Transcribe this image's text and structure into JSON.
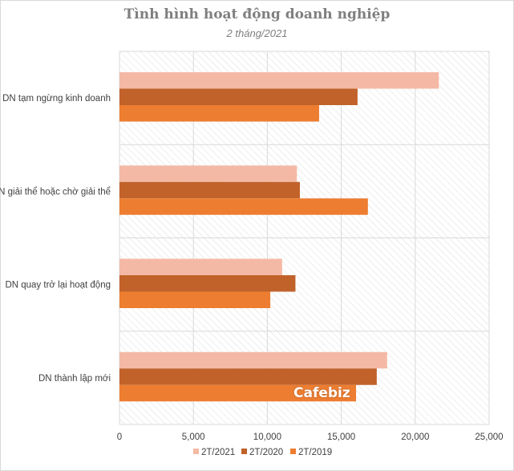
{
  "chart_data": {
    "type": "bar",
    "orientation": "horizontal",
    "title": "Tình hình hoạt động doanh nghiệp",
    "subtitle": "2 tháng/2021",
    "categories": [
      "DN tạm ngừng kinh doanh",
      "DN giải thể hoặc chờ giải thể",
      "DN quay trở lại hoạt động",
      "DN thành lập mới"
    ],
    "series": [
      {
        "name": "2T/2021",
        "color": "#f4b9a5",
        "values": [
          21600,
          12000,
          11000,
          18100
        ]
      },
      {
        "name": "2T/2020",
        "color": "#c0622a",
        "values": [
          16100,
          12200,
          11900,
          17400
        ]
      },
      {
        "name": "2T/2019",
        "color": "#ed7d31",
        "values": [
          13500,
          16800,
          10200,
          16000
        ]
      }
    ],
    "xlim": [
      0,
      25000
    ],
    "xticks": [
      0,
      5000,
      10000,
      15000,
      20000,
      25000
    ],
    "xtick_labels": [
      "0",
      "5,000",
      "10,000",
      "15,000",
      "20,000",
      "25,000"
    ],
    "grid": true,
    "legend_position": "bottom"
  },
  "watermark": "Cafebiz"
}
